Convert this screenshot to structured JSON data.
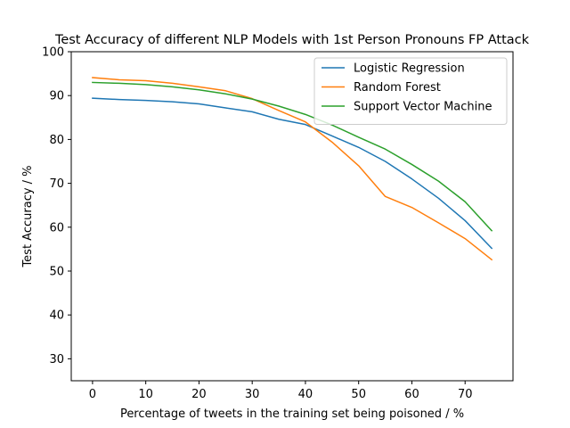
{
  "chart_data": {
    "type": "line",
    "title": "Test Accuracy of different NLP Models with 1st Person Pronouns FP Attack",
    "xlabel": "Percentage of tweets in the training set being poisoned / %",
    "ylabel": "Test Accuracy / %",
    "xlim": [
      -4,
      79
    ],
    "ylim": [
      25,
      100
    ],
    "xticks": [
      0,
      10,
      20,
      30,
      40,
      50,
      60,
      70
    ],
    "yticks": [
      30,
      40,
      50,
      60,
      70,
      80,
      90,
      100
    ],
    "grid": false,
    "legend_position": "top-right",
    "series": [
      {
        "name": "Logistic Regression",
        "color": "#1f77b4",
        "x": [
          0,
          5,
          10,
          15,
          20,
          25,
          30,
          35,
          40,
          45,
          50,
          55,
          60,
          65,
          70,
          75
        ],
        "y": [
          89.4,
          89.1,
          88.9,
          88.6,
          88.1,
          87.2,
          86.3,
          84.6,
          83.4,
          80.8,
          78.2,
          75.0,
          71.0,
          66.6,
          61.5,
          55.2
        ]
      },
      {
        "name": "Random Forest",
        "color": "#ff7f0e",
        "x": [
          0,
          5,
          10,
          15,
          20,
          25,
          30,
          35,
          40,
          45,
          50,
          55,
          60,
          65,
          70,
          75
        ],
        "y": [
          94.1,
          93.6,
          93.4,
          92.8,
          92.0,
          91.1,
          89.3,
          86.6,
          84.0,
          79.4,
          74.0,
          67.0,
          64.5,
          61.0,
          57.4,
          52.6
        ]
      },
      {
        "name": "Support Vector Machine",
        "color": "#2ca02c",
        "x": [
          0,
          5,
          10,
          15,
          20,
          25,
          30,
          35,
          40,
          45,
          50,
          55,
          60,
          65,
          70,
          75
        ],
        "y": [
          93.0,
          92.8,
          92.5,
          92.0,
          91.3,
          90.4,
          89.2,
          87.6,
          85.7,
          83.3,
          80.5,
          77.8,
          74.3,
          70.5,
          65.8,
          59.2
        ]
      }
    ]
  }
}
